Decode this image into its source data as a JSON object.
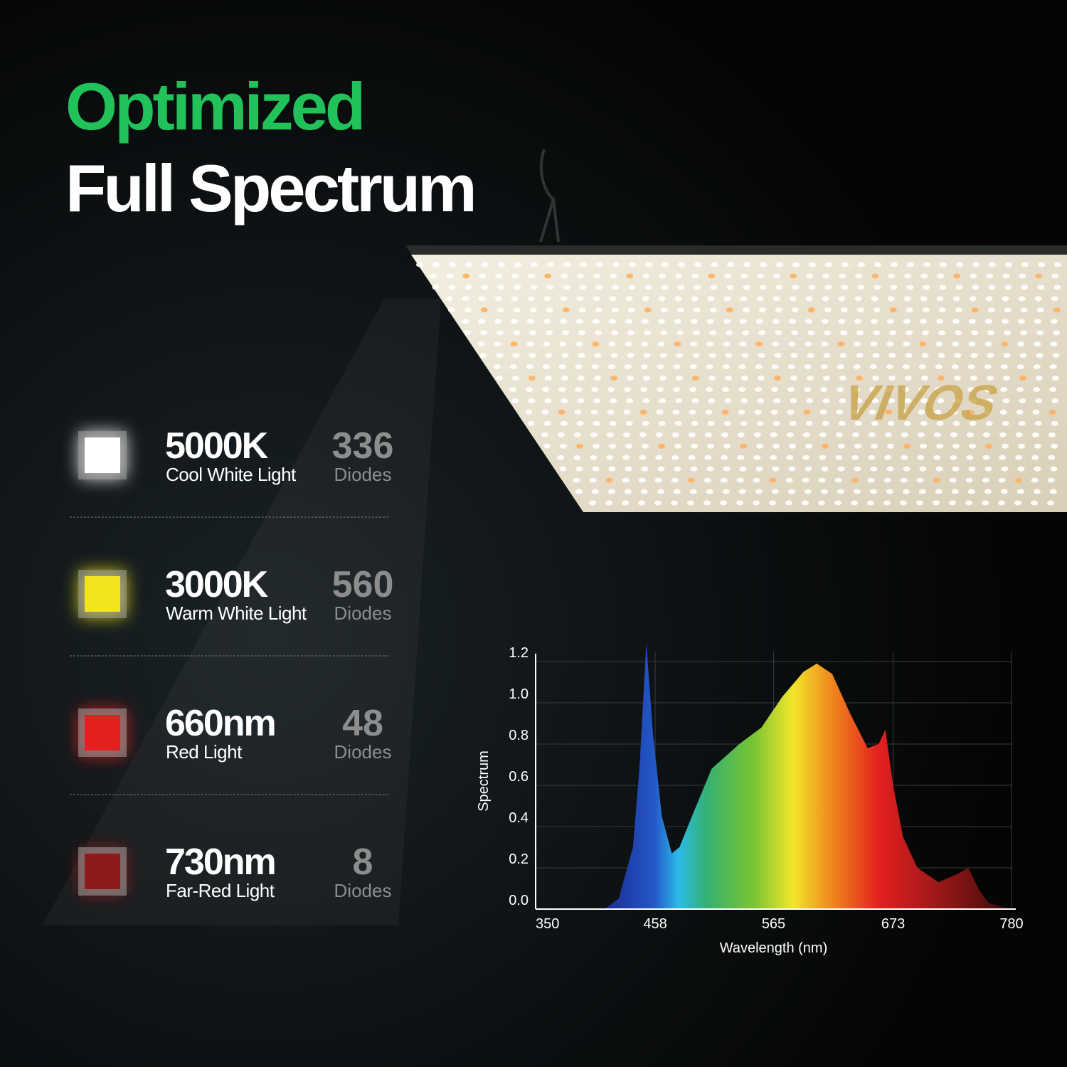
{
  "header": {
    "title_line1": "Optimized",
    "title_line2": "Full Spectrum"
  },
  "brand": "VIVOS",
  "diodes": [
    {
      "name": "5000K",
      "description": "Cool White Light",
      "count": "336",
      "unit": "Diodes",
      "color": "#ffffff"
    },
    {
      "name": "3000K",
      "description": "Warm White Light",
      "count": "560",
      "unit": "Diodes",
      "color": "#f2e41e"
    },
    {
      "name": "660nm",
      "description": "Red Light",
      "count": "48",
      "unit": "Diodes",
      "color": "#e3201f"
    },
    {
      "name": "730nm",
      "description": "Far-Red Light",
      "count": "8",
      "unit": "Diodes",
      "color": "#8e1a1a"
    }
  ],
  "chart_data": {
    "type": "area",
    "x_label": "Wavelength (nm)",
    "y_label": "Spectrum",
    "x": [
      412,
      425,
      438,
      444,
      450,
      456,
      464,
      473,
      480,
      489,
      509,
      534,
      554,
      573,
      592,
      604,
      618,
      634,
      650,
      660,
      666,
      673,
      682,
      695,
      714,
      731,
      741,
      750,
      759,
      779
    ],
    "values": [
      0.0,
      0.05,
      0.3,
      0.7,
      1.29,
      0.85,
      0.45,
      0.27,
      0.3,
      0.42,
      0.68,
      0.8,
      0.88,
      1.03,
      1.15,
      1.19,
      1.14,
      0.95,
      0.78,
      0.8,
      0.87,
      0.6,
      0.35,
      0.2,
      0.13,
      0.17,
      0.2,
      0.1,
      0.03,
      0.0
    ],
    "xlim": [
      350,
      780
    ],
    "ylim": [
      0,
      1.3
    ],
    "xticks": [
      350,
      458,
      565,
      673,
      780
    ],
    "yticks": [
      {
        "value": 0,
        "label": "0.0"
      },
      {
        "value": 0.2,
        "label": "0.2"
      },
      {
        "value": 0.4,
        "label": "0.4"
      },
      {
        "value": 0.6,
        "label": "0.6"
      },
      {
        "value": 0.8,
        "label": "0.8"
      },
      {
        "value": 1.0,
        "label": "1.0"
      },
      {
        "value": 1.2,
        "label": "1.2"
      }
    ],
    "grid": true
  }
}
